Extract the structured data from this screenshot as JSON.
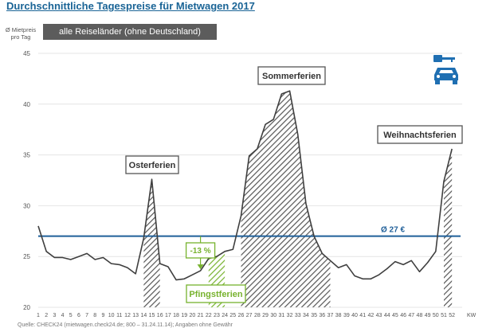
{
  "title": "Durchschnittliche Tagespreise für Mietwagen 2017",
  "subtitle": "alle Reiseländer (ohne Deutschland)",
  "source_text": "Quelle: CHECK24 (mietwagen.check24.de; 800 – 31.24.11.14); Angaben ohne Gewähr",
  "icon_names": [
    "car-key-icon",
    "car-icon"
  ],
  "colors": {
    "title": "#1a6496",
    "line": "#3f3f3f",
    "hatch": "#555555",
    "avg": "#1f5f99",
    "pfingst": "#77b22e",
    "icon": "#1f6fb2"
  },
  "chart_data": {
    "type": "area",
    "title": "Durchschnittliche Tagespreise für Mietwagen 2017",
    "ylabel": "Ø Mietpreis pro Tag",
    "xlabel": "KW",
    "ylim": [
      20,
      45
    ],
    "yticks": [
      20,
      25,
      30,
      35,
      40,
      45
    ],
    "x": [
      1,
      2,
      3,
      4,
      5,
      6,
      7,
      8,
      9,
      10,
      11,
      12,
      13,
      14,
      15,
      16,
      17,
      18,
      19,
      20,
      21,
      22,
      23,
      24,
      25,
      26,
      27,
      28,
      29,
      30,
      31,
      32,
      33,
      34,
      35,
      36,
      37,
      38,
      39,
      40,
      41,
      42,
      43,
      44,
      45,
      46,
      47,
      48,
      49,
      50,
      51,
      52
    ],
    "values": [
      28.0,
      25.5,
      24.9,
      24.9,
      24.7,
      25.0,
      25.3,
      24.7,
      24.9,
      24.3,
      24.2,
      23.9,
      23.3,
      26.8,
      32.6,
      24.3,
      24.0,
      22.7,
      22.8,
      23.2,
      23.6,
      24.8,
      25.0,
      25.5,
      25.7,
      29.0,
      34.9,
      35.6,
      38.0,
      38.5,
      41.0,
      41.3,
      37.0,
      30.2,
      27.0,
      25.3,
      24.6,
      23.9,
      24.2,
      23.1,
      22.8,
      22.8,
      23.2,
      23.8,
      24.5,
      24.2,
      24.6,
      23.5,
      24.4,
      25.5,
      32.4,
      35.6
    ],
    "average": {
      "value": 27.0,
      "label": "Ø 27 €"
    },
    "periods": [
      {
        "name": "Osterferien",
        "start": 14,
        "end": 16,
        "color": "#555555"
      },
      {
        "name": "Sommerferien",
        "start": 26,
        "end": 37,
        "color": "#555555"
      },
      {
        "name": "Weihnachtsferien",
        "start": 51,
        "end": 52,
        "color": "#555555"
      },
      {
        "name": "Pfingstferien",
        "start": 22,
        "end": 24,
        "color": "#77b22e"
      }
    ],
    "annotation": {
      "text": "-13 %",
      "week": 21
    }
  }
}
